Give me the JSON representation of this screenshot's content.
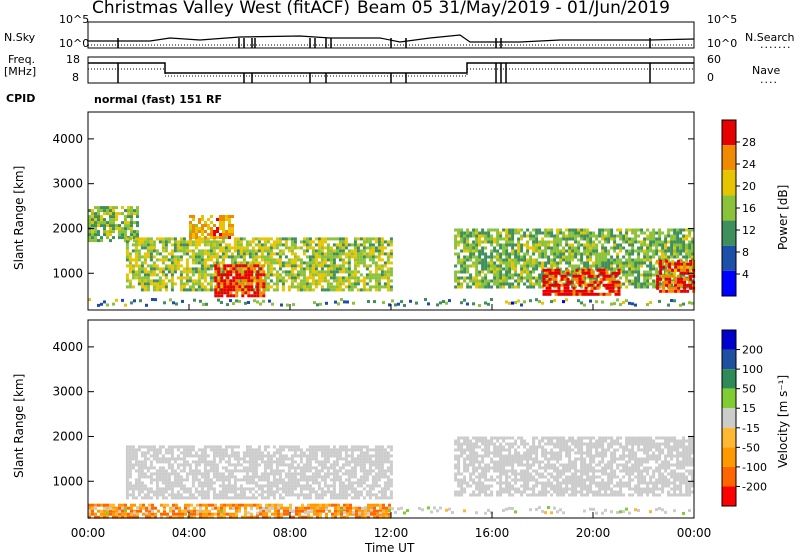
{
  "header": {
    "station": "Christmas Valley West (fitACF)",
    "beam_date": "Beam 05  31/May/2019 - 01/Jun/2019"
  },
  "sky_panel": {
    "left_label": "N.Sky",
    "right_label": "N.Search",
    "left_ticks": [
      "10^5",
      "10^0"
    ],
    "right_ticks": [
      "10^5",
      "10^0"
    ]
  },
  "freq_panel": {
    "left_label_1": "Freq.",
    "left_label_2": "[MHz]",
    "right_label": "Nave",
    "left_ticks": [
      "18",
      "8"
    ],
    "right_ticks": [
      "60",
      "0"
    ]
  },
  "cpid": {
    "label": "CPID",
    "value": "normal (fast) 151 RF"
  },
  "power_panel": {
    "ylabel": "Slant Range [km]",
    "cbar_label": "Power [dB]",
    "cbar_ticks": [
      "28",
      "24",
      "20",
      "16",
      "12",
      "8",
      "4"
    ]
  },
  "velocity_panel": {
    "ylabel": "Slant Range [km]",
    "cbar_label": "Velocity [m s⁻¹]",
    "cbar_ticks": [
      "200",
      "100",
      "50",
      "15",
      "-15",
      "-50",
      "-100",
      "-200"
    ]
  },
  "xaxis": {
    "label": "Time UT",
    "ticks": [
      "00:00",
      "04:00",
      "08:00",
      "12:00",
      "16:00",
      "20:00",
      "00:00"
    ]
  },
  "chart_data": [
    {
      "type": "heatmap",
      "title": "Power [dB]",
      "xlabel": "Time UT",
      "ylabel": "Slant Range [km]",
      "x_range": [
        "00:00",
        "24:00"
      ],
      "ylim": [
        180,
        4600
      ],
      "yticks": [
        1000,
        2000,
        3000,
        4000
      ],
      "color_range": [
        0,
        30
      ],
      "color_ticks": [
        4,
        8,
        12,
        16,
        20,
        24,
        28
      ],
      "colors": [
        "#0000ff",
        "#1c4fa8",
        "#3f8f5c",
        "#8ac23a",
        "#e6c400",
        "#f08a00",
        "#e60000"
      ],
      "regions": [
        {
          "t_start": 0.0,
          "t_end": 2.0,
          "range_start": 1700,
          "range_end": 2500,
          "level_db": 14
        },
        {
          "t_start": 1.5,
          "t_end": 12.0,
          "range_start": 600,
          "range_end": 1800,
          "level_db": 16
        },
        {
          "t_start": 4.0,
          "t_end": 5.7,
          "range_start": 1800,
          "range_end": 2300,
          "level_db": 22
        },
        {
          "t_start": 5.0,
          "t_end": 7.0,
          "range_start": 500,
          "range_end": 1200,
          "level_db": 28
        },
        {
          "t_start": 14.5,
          "t_end": 24.0,
          "range_start": 700,
          "range_end": 2000,
          "level_db": 14
        },
        {
          "t_start": 18.0,
          "t_end": 21.0,
          "range_start": 500,
          "range_end": 1100,
          "level_db": 28
        },
        {
          "t_start": 22.5,
          "t_end": 24.0,
          "range_start": 600,
          "range_end": 1300,
          "level_db": 26
        }
      ]
    },
    {
      "type": "heatmap",
      "title": "Velocity [m s⁻¹]",
      "xlabel": "Time UT",
      "ylabel": "Slant Range [km]",
      "x_range": [
        "00:00",
        "24:00"
      ],
      "ylim": [
        180,
        4600
      ],
      "yticks": [
        1000,
        2000,
        3000,
        4000
      ],
      "color_range": [
        -200,
        200
      ],
      "color_ticks": [
        -200,
        -100,
        -50,
        -15,
        15,
        50,
        100,
        200
      ],
      "colors": [
        "#ff0000",
        "#ff6600",
        "#ff9900",
        "#ffb833",
        "#cccccc",
        "#80cc33",
        "#2e8b57",
        "#1f4fa0",
        "#0000cc"
      ],
      "regions": [
        {
          "t_start": 1.5,
          "t_end": 12.0,
          "range_start": 600,
          "range_end": 1800,
          "velocity": 0
        },
        {
          "t_start": 14.5,
          "t_end": 24.0,
          "range_start": 700,
          "range_end": 2000,
          "velocity": 0
        },
        {
          "t_start": 0.0,
          "t_end": 12.0,
          "range_start": 200,
          "range_end": 500,
          "velocity": -80
        }
      ]
    }
  ]
}
